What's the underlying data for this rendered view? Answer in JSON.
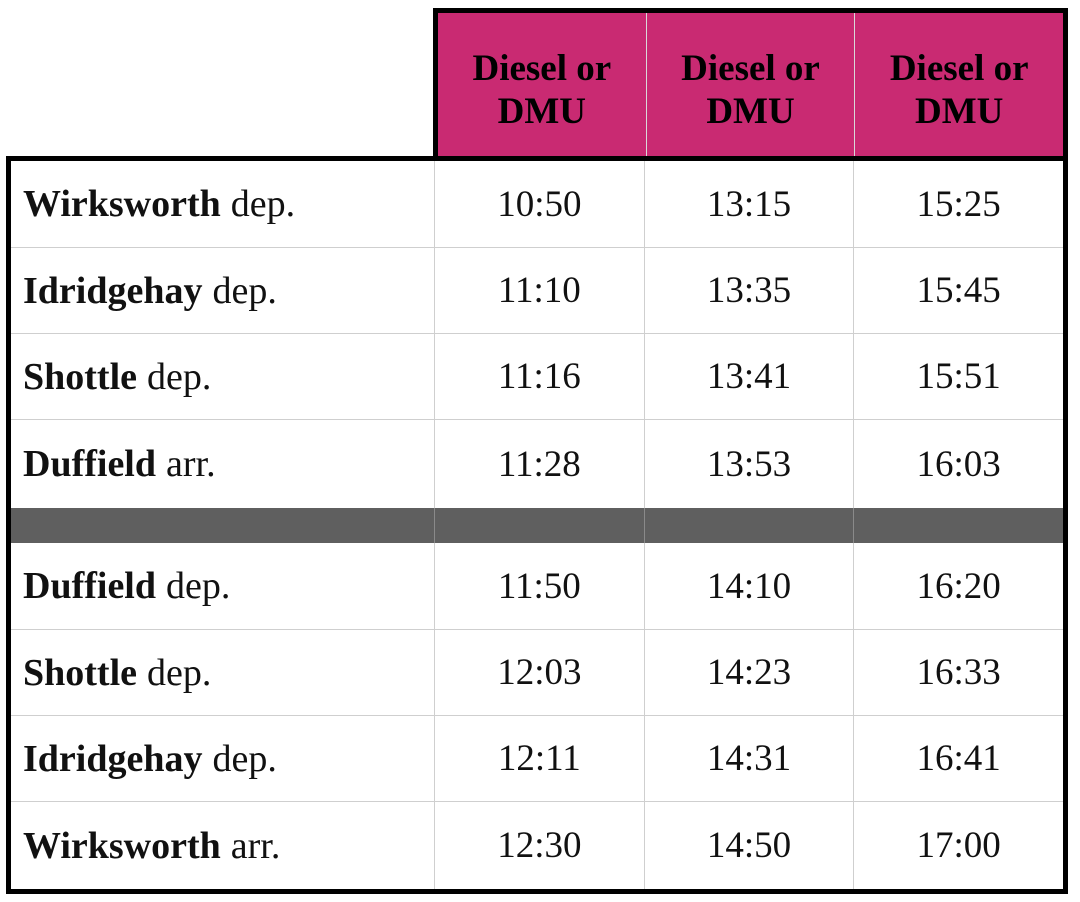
{
  "header": {
    "columns": [
      {
        "line1": "Diesel or",
        "line2": "DMU"
      },
      {
        "line1": "Diesel or",
        "line2": "DMU"
      },
      {
        "line1": "Diesel or",
        "line2": "DMU"
      }
    ]
  },
  "rows_outbound": [
    {
      "station": "Wirksworth",
      "type": "dep.",
      "times": [
        "10:50",
        "13:15",
        "15:25"
      ]
    },
    {
      "station": "Idridgehay",
      "type": "dep.",
      "times": [
        "11:10",
        "13:35",
        "15:45"
      ]
    },
    {
      "station": "Shottle",
      "type": "dep.",
      "times": [
        "11:16",
        "13:41",
        "15:51"
      ]
    },
    {
      "station": "Duffield",
      "type": "arr.",
      "times": [
        "11:28",
        "13:53",
        "16:03"
      ]
    }
  ],
  "rows_return": [
    {
      "station": "Duffield",
      "type": "dep.",
      "times": [
        "11:50",
        "14:10",
        "16:20"
      ]
    },
    {
      "station": "Shottle",
      "type": "dep.",
      "times": [
        "12:03",
        "14:23",
        "16:33"
      ]
    },
    {
      "station": "Idridgehay",
      "type": "dep.",
      "times": [
        "12:11",
        "14:31",
        "16:41"
      ]
    },
    {
      "station": "Wirksworth",
      "type": "arr.",
      "times": [
        "12:30",
        "14:50",
        "17:00"
      ]
    }
  ],
  "colors": {
    "header_bg": "#c92a72",
    "divider_bg": "#5f5f5f",
    "border": "#000000"
  }
}
